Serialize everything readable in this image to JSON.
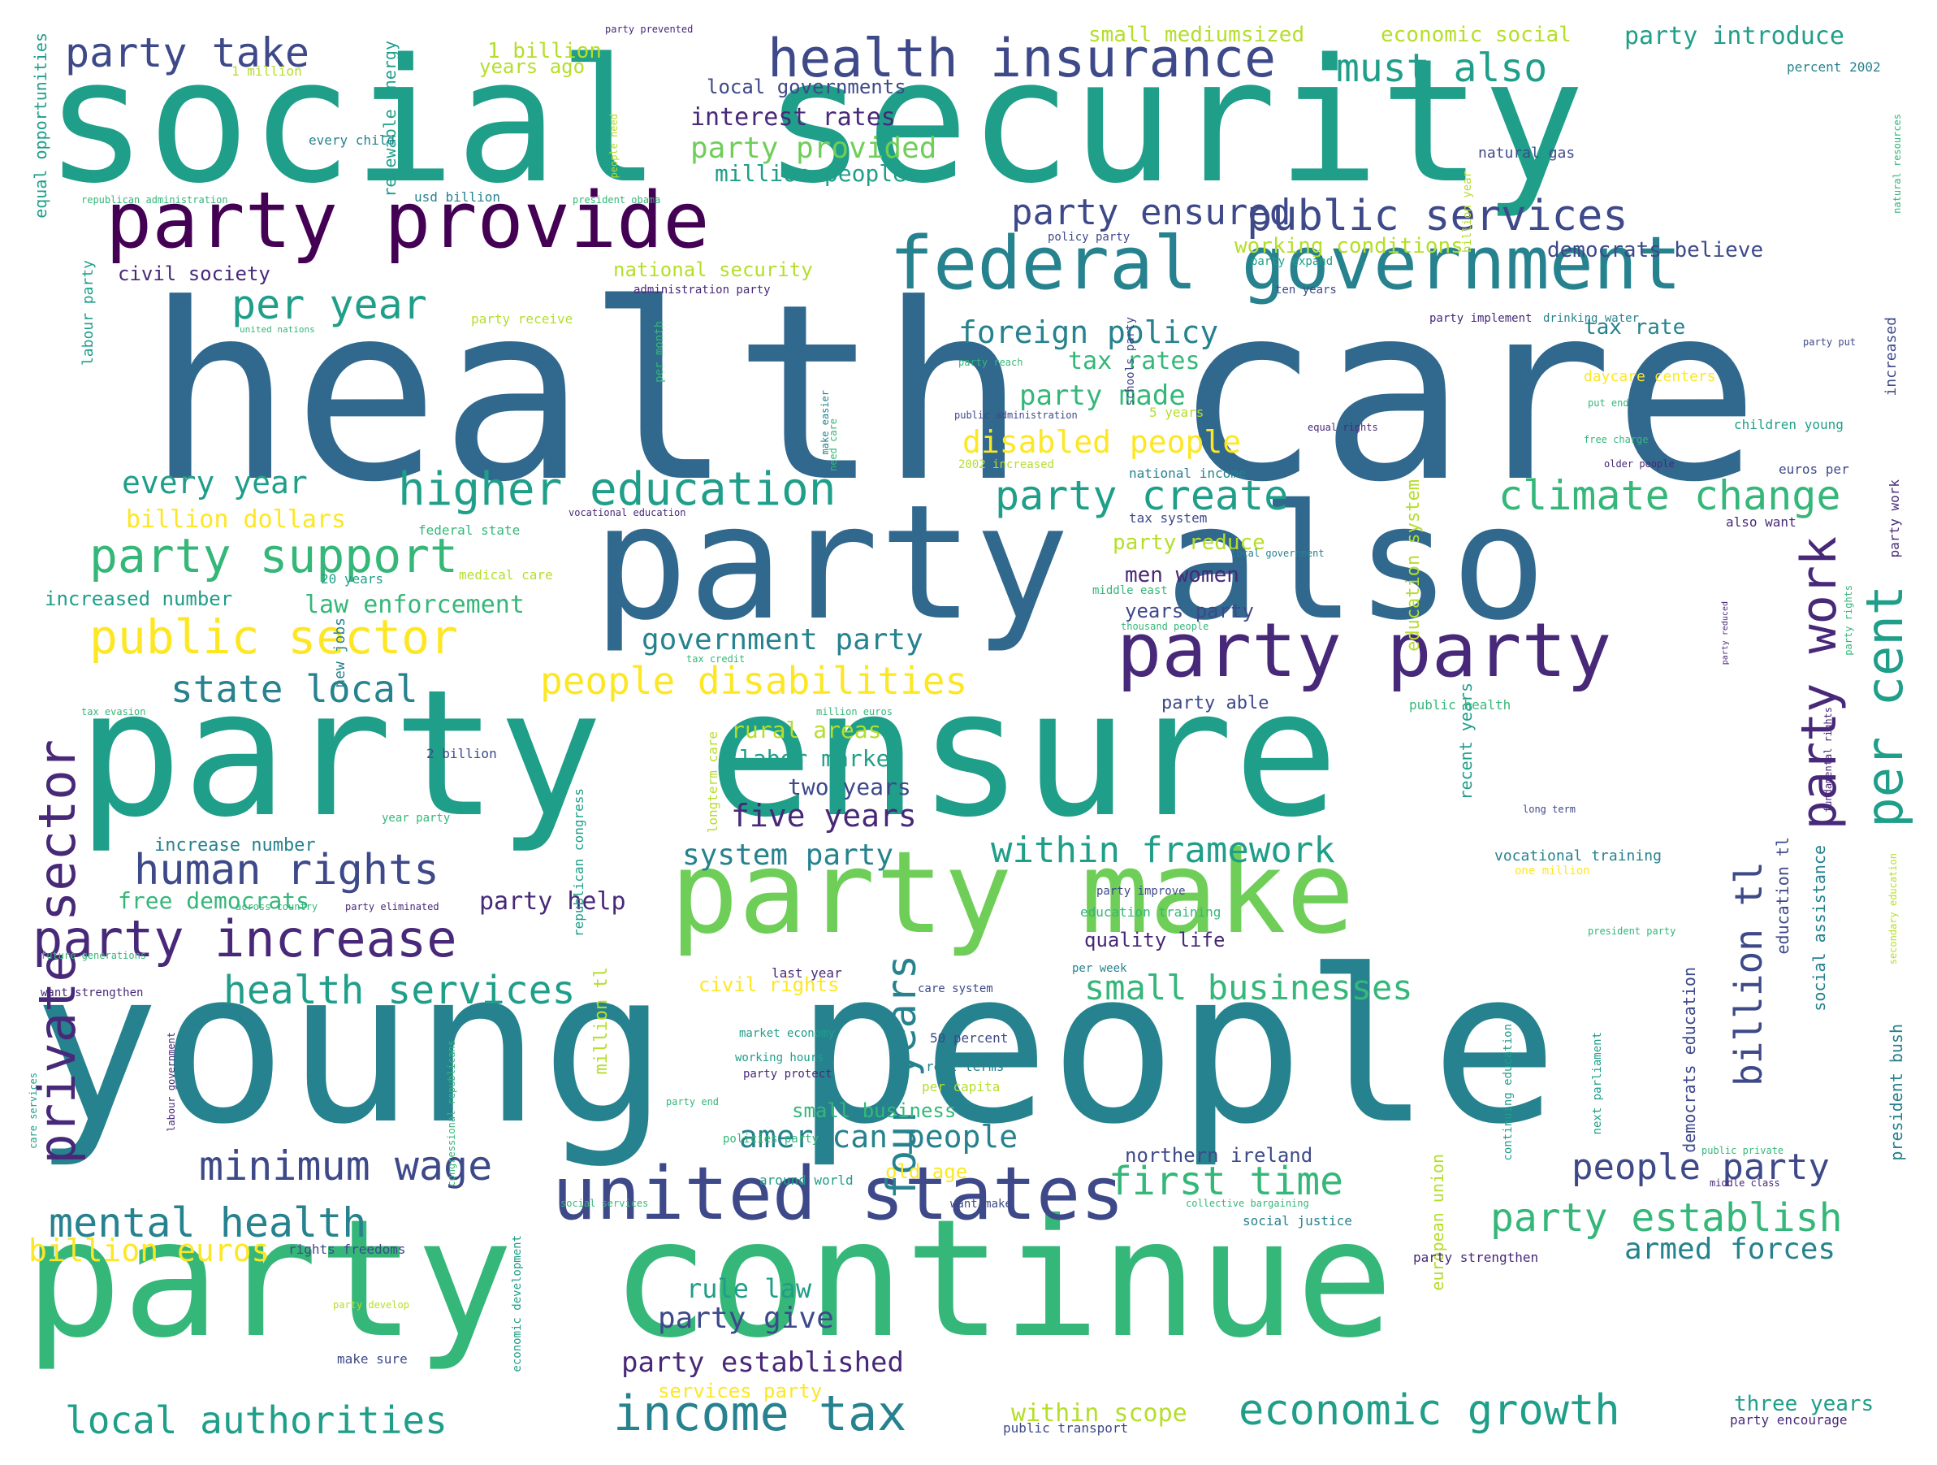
{
  "palette": {
    "purple_dark": "#440154",
    "purple": "#482878",
    "indigo": "#3e4989",
    "slate_blue": "#31688e",
    "blue_teal": "#26828e",
    "teal": "#1f9e89",
    "green": "#35b779",
    "light_green": "#6ece58",
    "yellow_green": "#b5de2b",
    "yellow": "#fde725"
  },
  "words": [
    {
      "text": "health care"
    },
    {
      "text": "social security"
    },
    {
      "text": "young people"
    },
    {
      "text": "party ensure"
    },
    {
      "text": "party continue"
    },
    {
      "text": "party also"
    },
    {
      "text": "party make"
    },
    {
      "text": "party provide"
    },
    {
      "text": "federal government"
    },
    {
      "text": "health insurance"
    },
    {
      "text": "united states"
    },
    {
      "text": "party party"
    },
    {
      "text": "public sector"
    },
    {
      "text": "party support"
    },
    {
      "text": "party increase"
    },
    {
      "text": "people disabilities"
    },
    {
      "text": "public services"
    },
    {
      "text": "private sector"
    },
    {
      "text": "income tax"
    },
    {
      "text": "economic growth"
    },
    {
      "text": "higher education"
    },
    {
      "text": "human rights"
    },
    {
      "text": "mental health"
    },
    {
      "text": "minimum wage"
    },
    {
      "text": "local authorities"
    },
    {
      "text": "party work"
    },
    {
      "text": "per cent"
    },
    {
      "text": "four years"
    },
    {
      "text": "party take"
    },
    {
      "text": "must also"
    },
    {
      "text": "per year"
    },
    {
      "text": "party create"
    },
    {
      "text": "climate change"
    },
    {
      "text": "party establish"
    },
    {
      "text": "health services"
    },
    {
      "text": "first time"
    },
    {
      "text": "state local"
    },
    {
      "text": "within framework"
    },
    {
      "text": "people party"
    },
    {
      "text": "small businesses"
    },
    {
      "text": "american people"
    },
    {
      "text": "party ensured"
    },
    {
      "text": "foreign policy"
    },
    {
      "text": "billion tl"
    },
    {
      "text": "five years"
    },
    {
      "text": "government party"
    },
    {
      "text": "every year"
    },
    {
      "text": "billion euros"
    },
    {
      "text": "armed forces"
    },
    {
      "text": "disabled people"
    },
    {
      "text": "party give"
    },
    {
      "text": "party established"
    },
    {
      "text": "party made"
    },
    {
      "text": "tax rates"
    },
    {
      "text": "system party"
    },
    {
      "text": "law enforcement"
    },
    {
      "text": "rule law"
    },
    {
      "text": "within scope"
    },
    {
      "text": "party provided"
    },
    {
      "text": "interest rates"
    },
    {
      "text": "million people"
    },
    {
      "text": "democrats believe"
    },
    {
      "text": "tax rate"
    },
    {
      "text": "party introduce"
    },
    {
      "text": "two years"
    },
    {
      "text": "labor market"
    },
    {
      "text": "rural areas"
    },
    {
      "text": "party help"
    },
    {
      "text": "free democrats"
    },
    {
      "text": "men women"
    },
    {
      "text": "party reduce"
    },
    {
      "text": "years party"
    },
    {
      "text": "billion dollars"
    },
    {
      "text": "increased number"
    },
    {
      "text": "small business"
    },
    {
      "text": "civil rights"
    },
    {
      "text": "northern ireland"
    },
    {
      "text": "old age"
    },
    {
      "text": "three years"
    },
    {
      "text": "quality life"
    },
    {
      "text": "services party"
    },
    {
      "text": "working conditions"
    },
    {
      "text": "small mediumsized"
    },
    {
      "text": "economic social"
    },
    {
      "text": "local governments"
    },
    {
      "text": "national security"
    },
    {
      "text": "civil society"
    },
    {
      "text": "1 billion"
    },
    {
      "text": "years ago"
    },
    {
      "text": "increase number"
    },
    {
      "text": "party able"
    },
    {
      "text": "education system"
    },
    {
      "text": "education tl"
    },
    {
      "text": "recent years"
    },
    {
      "text": "democrats education"
    },
    {
      "text": "social assistance"
    },
    {
      "text": "european union"
    },
    {
      "text": "president bush"
    },
    {
      "text": "renewable energy"
    },
    {
      "text": "equal opportunities"
    },
    {
      "text": "million tl"
    },
    {
      "text": "new jobs"
    },
    {
      "text": "daycare centers"
    },
    {
      "text": "labour party"
    },
    {
      "text": "party receive"
    },
    {
      "text": "every child"
    },
    {
      "text": "natural gas"
    },
    {
      "text": "increased"
    },
    {
      "text": "party work"
    },
    {
      "text": "percent 2002"
    },
    {
      "text": "party prevented"
    },
    {
      "text": "1 million"
    },
    {
      "text": "usd billion"
    },
    {
      "text": "republican administration"
    },
    {
      "text": "president obama"
    },
    {
      "text": "people need"
    },
    {
      "text": "billion year"
    },
    {
      "text": "policy party"
    },
    {
      "text": "party expand"
    },
    {
      "text": "ten years"
    },
    {
      "text": "administration party"
    },
    {
      "text": "party implement"
    },
    {
      "text": "drinking water"
    },
    {
      "text": "party put"
    },
    {
      "text": "per month"
    },
    {
      "text": "party reach"
    },
    {
      "text": "make easier"
    },
    {
      "text": "public administration"
    },
    {
      "text": "schools party"
    },
    {
      "text": "5 years"
    },
    {
      "text": "equal rights"
    },
    {
      "text": "put end"
    },
    {
      "text": "free charge"
    },
    {
      "text": "children young"
    },
    {
      "text": "united nations"
    },
    {
      "text": "need care"
    },
    {
      "text": "2002 increased"
    },
    {
      "text": "national income"
    },
    {
      "text": "older people"
    },
    {
      "text": "euros per"
    },
    {
      "text": "vocational education"
    },
    {
      "text": "federal state"
    },
    {
      "text": "tax system"
    },
    {
      "text": "also want"
    },
    {
      "text": "local government"
    },
    {
      "text": "medical care"
    },
    {
      "text": "20 years"
    },
    {
      "text": "middle east"
    },
    {
      "text": "party reduced"
    },
    {
      "text": "fundamental rights"
    },
    {
      "text": "thousand people"
    },
    {
      "text": "tax credit"
    },
    {
      "text": "tax evasion"
    },
    {
      "text": "million euros"
    },
    {
      "text": "public health"
    },
    {
      "text": "party rights"
    },
    {
      "text": "2 billion"
    },
    {
      "text": "longterm care"
    },
    {
      "text": "long term"
    },
    {
      "text": "republican congress"
    },
    {
      "text": "year party"
    },
    {
      "text": "vocational training"
    },
    {
      "text": "one million"
    },
    {
      "text": "party improve"
    },
    {
      "text": "education training"
    },
    {
      "text": "across country"
    },
    {
      "text": "party eliminated"
    },
    {
      "text": "future generations"
    },
    {
      "text": "want strengthen"
    },
    {
      "text": "per week"
    },
    {
      "text": "president party"
    },
    {
      "text": "last year"
    },
    {
      "text": "market economy"
    },
    {
      "text": "50 percent"
    },
    {
      "text": "care system"
    },
    {
      "text": "working hours"
    },
    {
      "text": "party protect"
    },
    {
      "text": "real terms"
    },
    {
      "text": "per capita"
    },
    {
      "text": "labour government"
    },
    {
      "text": "congressional republicans"
    },
    {
      "text": "care services"
    },
    {
      "text": "policies party"
    },
    {
      "text": "around world"
    },
    {
      "text": "want make"
    },
    {
      "text": "collective bargaining"
    },
    {
      "text": "social services"
    },
    {
      "text": "social justice"
    },
    {
      "text": "party strengthen"
    },
    {
      "text": "continuing education"
    },
    {
      "text": "next parliament"
    },
    {
      "text": "public private"
    },
    {
      "text": "middle class"
    },
    {
      "text": "party develop"
    },
    {
      "text": "party end"
    },
    {
      "text": "rights freedoms"
    },
    {
      "text": "make sure"
    },
    {
      "text": "economic development"
    },
    {
      "text": "party encourage"
    },
    {
      "text": "public transport"
    },
    {
      "text": "secondary education"
    },
    {
      "text": "natural resources"
    }
  ]
}
